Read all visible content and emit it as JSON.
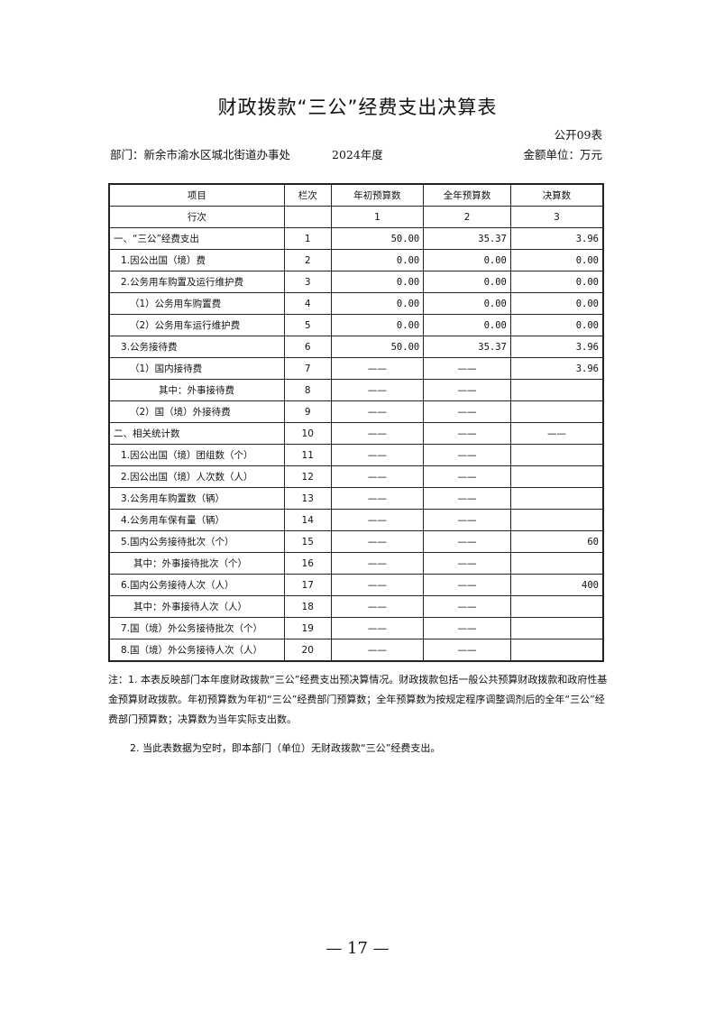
{
  "title": "财政拨款“三公”经费支出决算表",
  "table_no": "公开09表",
  "department": "部门：新余市渝水区城北街道办事处",
  "year": "2024年度",
  "unit": "金额单位：万元",
  "headers": [
    "项目",
    "栏次",
    "年初预算数",
    "全年预算数",
    "决算数"
  ],
  "index_row": [
    "行次",
    "",
    "1",
    "2",
    "3"
  ],
  "rows": [
    [
      "一、“三公”经费支出",
      "1",
      "50.00",
      "35.37",
      "3.96"
    ],
    [
      "1.因公出国（境）费",
      "2",
      "0.00",
      "0.00",
      "0.00"
    ],
    [
      "2.公务用车购置及运行维护费",
      "3",
      "0.00",
      "0.00",
      "0.00"
    ],
    [
      "（1）公务用车购置费",
      "4",
      "0.00",
      "0.00",
      "0.00"
    ],
    [
      "（2）公务用车运行维护费",
      "5",
      "0.00",
      "0.00",
      "0.00"
    ],
    [
      "3.公务接待费",
      "6",
      "50.00",
      "35.37",
      "3.96"
    ],
    [
      "（1）国内接待费",
      "7",
      "——",
      "——",
      "3.96"
    ],
    [
      "其中：外事接待费",
      "8",
      "——",
      "——",
      ""
    ],
    [
      "（2）国（境）外接待费",
      "9",
      "——",
      "——",
      ""
    ],
    [
      "二、相关统计数",
      "10",
      "——",
      "——",
      "——"
    ],
    [
      "1.因公出国（境）团组数（个）",
      "11",
      "——",
      "——",
      ""
    ],
    [
      "2.因公出国（境）人次数（人）",
      "12",
      "——",
      "——",
      ""
    ],
    [
      "3.公务用车购置数（辆）",
      "13",
      "——",
      "——",
      ""
    ],
    [
      "4.公务用车保有量（辆）",
      "14",
      "——",
      "——",
      ""
    ],
    [
      "5.国内公务接待批次（个）",
      "15",
      "——",
      "——",
      "60"
    ],
    [
      "其中：外事接待批次（个）",
      "16",
      "——",
      "——",
      ""
    ],
    [
      "6.国内公务接待人次（人）",
      "17",
      "——",
      "——",
      "400"
    ],
    [
      "其中：外事接待人次（人）",
      "18",
      "——",
      "——",
      ""
    ],
    [
      "7.国（境）外公务接待批次（个）",
      "19",
      "——",
      "——",
      ""
    ],
    [
      "8.国（境）外公务接待人次（人）",
      "20",
      "——",
      "——",
      ""
    ]
  ],
  "notes": [
    "注：1. 本表反映部门本年度财政拨款“三公”经费支出预决算情况。财政拨款包括一般公共预算财政拨款和政府性基金预算财政拨款。年初预算数为年初“三公”经费部门预算数；全年预算数为按规定程序调整调剂后的全年“三公”经费部门预算数；决算数为当年实际支出数。",
    "2. 当此表数据为空时，即本部门（单位）无财政拨款“三公”经费支出。"
  ],
  "page_number": "— 17 —"
}
